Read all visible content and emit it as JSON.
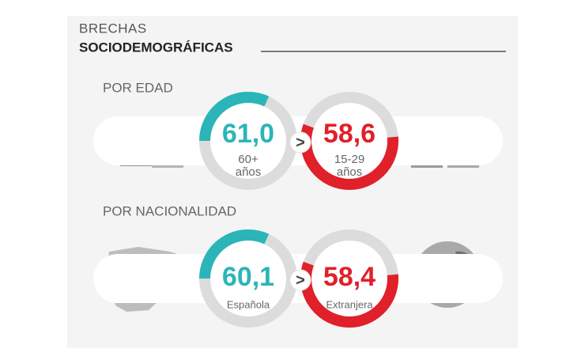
{
  "header": {
    "title": "BRECHAS",
    "subtitle": "SOCIODEMOGRÁFICAS"
  },
  "sections": [
    {
      "label": "POR EDAD",
      "left": {
        "value": "61,0",
        "caption": [
          "60+",
          "años"
        ]
      },
      "comparator": ">",
      "right": {
        "value": "58,6",
        "caption": [
          "15-29",
          "años"
        ]
      }
    },
    {
      "label": "POR NACIONALIDAD",
      "left": {
        "value": "60,1",
        "caption": [
          "Española"
        ]
      },
      "comparator": ">",
      "right": {
        "value": "58,4",
        "caption": [
          "Extranjera"
        ]
      }
    }
  ]
}
